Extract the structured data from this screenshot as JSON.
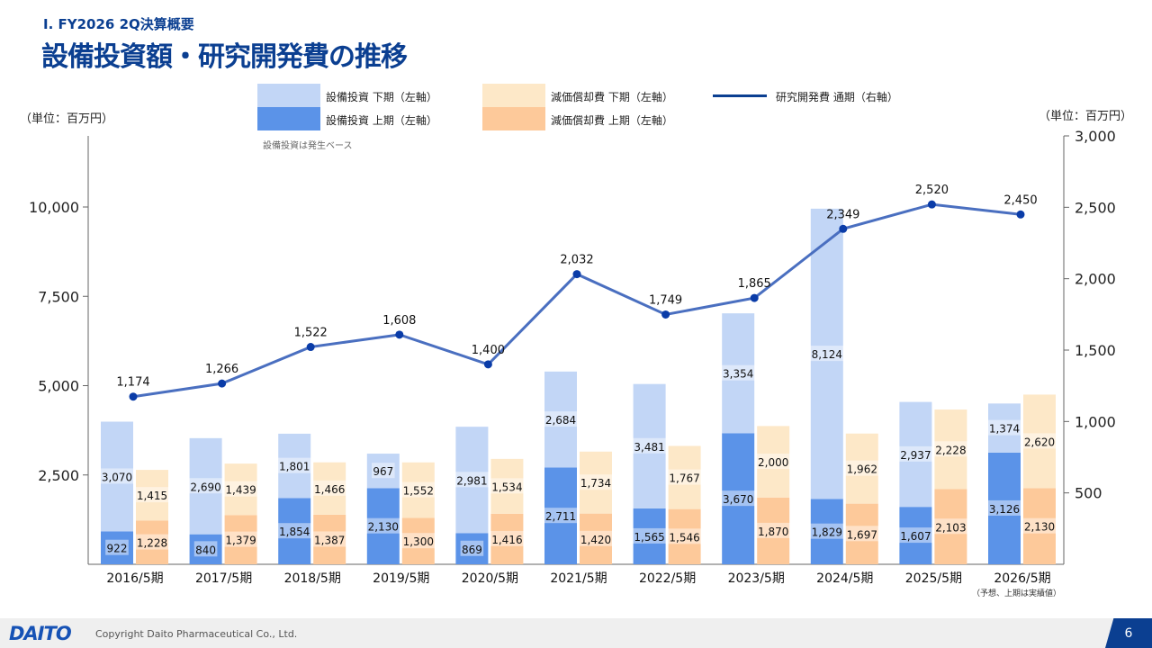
{
  "header": {
    "section": "Ⅰ. FY2026 2Q決算概要",
    "title": "設備投資額・研究開発費の推移"
  },
  "footer": {
    "logo": "DAITO",
    "copyright": "Copyright  Daito Pharmaceutical Co., Ltd.",
    "page": "6"
  },
  "colors": {
    "capex_h2": "#c2d6f6",
    "capex_h1": "#5b93e8",
    "dep_h2": "#fde8c8",
    "dep_h1": "#fdc99a",
    "rd_line": "#4a6fc0",
    "rd_marker": "#0a3ca8"
  },
  "chart_data": {
    "type": "bar",
    "title": "設備投資額・研究開発費の推移",
    "unit_left": "（単位：百万円）",
    "unit_right": "（単位：百万円）",
    "note": "設備投資は発生ベース",
    "x_note": "（予想、上期は実績値）",
    "categories": [
      "2016/5期",
      "2017/5期",
      "2018/5期",
      "2019/5期",
      "2020/5期",
      "2021/5期",
      "2022/5期",
      "2023/5期",
      "2024/5期",
      "2025/5期",
      "2026/5期"
    ],
    "left_axis": {
      "ylim": [
        0,
        12000
      ],
      "ticks": [
        "2,500",
        "5,000",
        "7,500",
        "10,000"
      ],
      "tick_values": [
        2500,
        5000,
        7500,
        10000
      ]
    },
    "right_axis": {
      "ylim": [
        0,
        3000
      ],
      "ticks": [
        "500",
        "1,000",
        "1,500",
        "2,000",
        "2,500",
        "3,000"
      ],
      "tick_values": [
        500,
        1000,
        1500,
        2000,
        2500,
        3000
      ]
    },
    "legend": {
      "capex_h2": "設備投資 下期（左軸）",
      "capex_h1": "設備投資 上期（左軸）",
      "dep_h2": "減価償却費 下期（左軸）",
      "dep_h1": "減価償却費 上期（左軸）",
      "rd": "研究開発費 通期（右軸）"
    },
    "series": [
      {
        "name": "設備投資 上期",
        "key": "capex_h1",
        "axis": "left",
        "values": [
          922,
          840,
          1854,
          2130,
          869,
          2711,
          1565,
          3670,
          1829,
          1607,
          3126
        ],
        "labels": [
          "922",
          "840",
          "1,854",
          "2,130",
          "869",
          "2,711",
          "1,565",
          "3,670",
          "1,829",
          "1,607",
          "3,126"
        ]
      },
      {
        "name": "設備投資 下期",
        "key": "capex_h2",
        "axis": "left",
        "values": [
          3070,
          2690,
          1801,
          967,
          2981,
          2684,
          3481,
          3354,
          8124,
          2937,
          1374
        ],
        "labels": [
          "3,070",
          "2,690",
          "1,801",
          "967",
          "2,981",
          "2,684",
          "3,481",
          "3,354",
          "8,124",
          "2,937",
          "1,374"
        ]
      },
      {
        "name": "減価償却費 上期",
        "key": "dep_h1",
        "axis": "left",
        "values": [
          1228,
          1379,
          1387,
          1300,
          1416,
          1420,
          1546,
          1870,
          1697,
          2103,
          2130
        ],
        "labels": [
          "1,228",
          "1,379",
          "1,387",
          "1,300",
          "1,416",
          "1,420",
          "1,546",
          "1,870",
          "1,697",
          "2,103",
          "2,130"
        ]
      },
      {
        "name": "減価償却費 下期",
        "key": "dep_h2",
        "axis": "left",
        "values": [
          1415,
          1439,
          1466,
          1552,
          1534,
          1734,
          1767,
          2000,
          1962,
          2228,
          2620
        ],
        "labels": [
          "1,415",
          "1,439",
          "1,466",
          "1,552",
          "1,534",
          "1,734",
          "1,767",
          "2,000",
          "1,962",
          "2,228",
          "2,620"
        ]
      },
      {
        "name": "研究開発費 通期",
        "key": "rd",
        "type": "line",
        "axis": "right",
        "values": [
          1174,
          1266,
          1522,
          1608,
          1400,
          2032,
          1749,
          1865,
          2349,
          2520,
          2450
        ],
        "labels": [
          "1,174",
          "1,266",
          "1,522",
          "1,608",
          "1,400",
          "2,032",
          "1,749",
          "1,865",
          "2,349",
          "2,520",
          "2,450"
        ]
      }
    ]
  }
}
